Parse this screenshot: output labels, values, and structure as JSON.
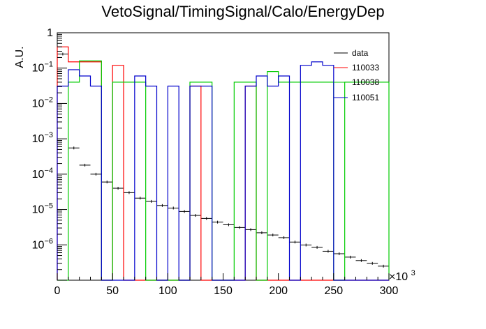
{
  "chart_data": {
    "type": "histogram",
    "title": "VetoSignal/TimingSignal/Calo/EnergyDep",
    "xlabel": "",
    "ylabel": "A.U.",
    "x_multiplier_label": "×10",
    "x_multiplier_exponent": "3",
    "x_range": [
      0,
      300
    ],
    "y_scale": "log",
    "y_range": [
      1e-07,
      1
    ],
    "x_ticks": [
      {
        "value": 0,
        "label": "0"
      },
      {
        "value": 50,
        "label": "50"
      },
      {
        "value": 100,
        "label": "100"
      },
      {
        "value": 150,
        "label": "150"
      },
      {
        "value": 200,
        "label": "200"
      },
      {
        "value": 250,
        "label": "250"
      },
      {
        "value": 300,
        "label": "300"
      }
    ],
    "y_ticks": [
      {
        "value": 1,
        "base": "1",
        "exp": ""
      },
      {
        "value": 0.1,
        "base": "10",
        "exp": "−1"
      },
      {
        "value": 0.01,
        "base": "10",
        "exp": "−2"
      },
      {
        "value": 0.001,
        "base": "10",
        "exp": "−3"
      },
      {
        "value": 0.0001,
        "base": "10",
        "exp": "−4"
      },
      {
        "value": 1e-05,
        "base": "10",
        "exp": "−5"
      },
      {
        "value": 1e-06,
        "base": "10",
        "exp": "−6"
      }
    ],
    "legend_position": "top-right",
    "series": [
      {
        "name": "data",
        "color": "#000000",
        "style": "points",
        "bin_width": 10,
        "x": [
          5,
          15,
          25,
          35,
          45,
          55,
          65,
          75,
          85,
          95,
          105,
          115,
          125,
          135,
          145,
          155,
          165,
          175,
          185,
          195,
          205,
          215,
          225,
          235,
          245,
          255,
          265,
          275,
          285,
          295
        ],
        "values": [
          0.25,
          0.00055,
          0.00018,
          0.0001,
          6e-05,
          4e-05,
          3e-05,
          2.1e-05,
          1.7e-05,
          1.3e-05,
          1.1e-05,
          8.8e-06,
          6.8e-06,
          5.6e-06,
          4.4e-06,
          3.7e-06,
          3.1e-06,
          2.7e-06,
          2.2e-06,
          1.9e-06,
          1.6e-06,
          1.2e-06,
          9.9e-07,
          8.5e-07,
          6.6e-07,
          5.6e-07,
          4.5e-07,
          3.6e-07,
          3e-07,
          2.5e-07
        ]
      },
      {
        "name": "110033",
        "color": "#ff0000",
        "style": "step",
        "bin_width": 10,
        "x": [
          5,
          15,
          25,
          35,
          45,
          55,
          65,
          75,
          85,
          95,
          105,
          115,
          125,
          135,
          145,
          155,
          165,
          175,
          185,
          195,
          205,
          215,
          225,
          235,
          245,
          255,
          265,
          275,
          285,
          295
        ],
        "values": [
          0.4,
          0.15,
          0.15,
          0.15,
          0,
          0.12,
          0,
          0,
          0,
          0,
          0,
          0,
          0.031,
          0,
          0,
          0,
          0,
          0.031,
          0,
          0,
          0,
          0,
          0,
          0,
          0,
          0,
          0,
          0,
          0,
          0
        ]
      },
      {
        "name": "110038",
        "color": "#00cc00",
        "style": "step",
        "bin_width": 10,
        "x": [
          5,
          15,
          25,
          35,
          45,
          55,
          65,
          75,
          85,
          95,
          105,
          115,
          125,
          135,
          145,
          155,
          165,
          175,
          185,
          195,
          205,
          215,
          225,
          235,
          245,
          255,
          265,
          275,
          285,
          295
        ],
        "values": [
          0,
          0.04,
          0.16,
          0.16,
          0,
          0.04,
          0.04,
          0.04,
          0,
          0,
          0,
          0,
          0.04,
          0.04,
          0,
          0,
          0.04,
          0.04,
          0,
          0.08,
          0.04,
          0.04,
          0.04,
          0.04,
          0.04,
          0,
          0.04,
          0.04,
          0.04,
          0.04
        ]
      },
      {
        "name": "110051",
        "color": "#0000cc",
        "style": "step",
        "bin_width": 10,
        "x": [
          5,
          15,
          25,
          35,
          45,
          55,
          65,
          75,
          85,
          95,
          105,
          115,
          125,
          135,
          145,
          155,
          165,
          175,
          185,
          195,
          205,
          215,
          225,
          235,
          245,
          255,
          265,
          275,
          285,
          295
        ],
        "values": [
          0.031,
          0.09,
          0.06,
          0.031,
          0,
          0,
          0,
          0.06,
          0.031,
          0,
          0.031,
          0,
          0.031,
          0.031,
          0,
          0,
          0,
          0.031,
          0.06,
          0.031,
          0.06,
          0,
          0.12,
          0.15,
          0.12,
          0,
          0,
          0,
          0,
          0
        ]
      }
    ]
  }
}
